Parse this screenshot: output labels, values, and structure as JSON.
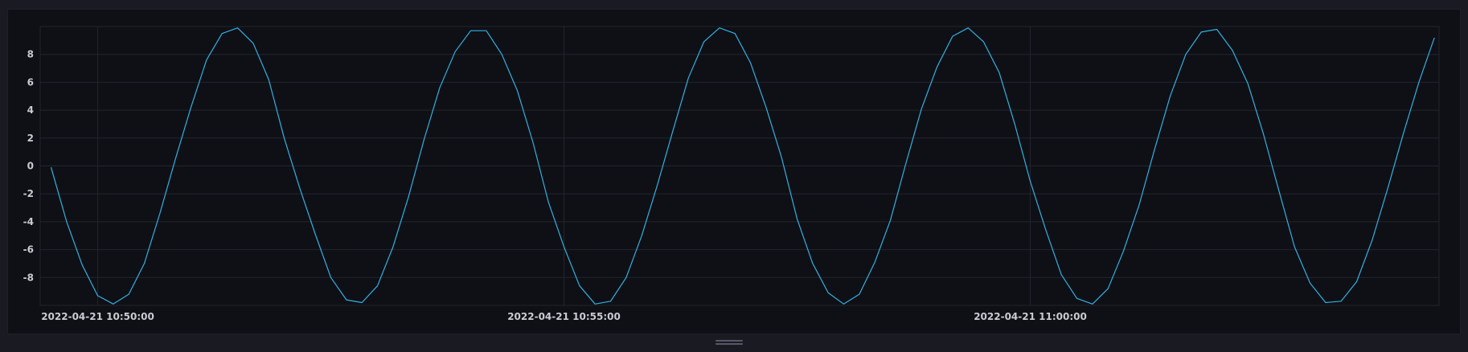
{
  "chart_data": {
    "type": "line",
    "title": "",
    "xlabel": "",
    "ylabel": "",
    "ylim": [
      -10,
      10
    ],
    "y_ticks": [
      8,
      6,
      4,
      2,
      0,
      -2,
      -4,
      -6,
      -8
    ],
    "x_ticks": [
      {
        "t": 0,
        "label": "2022-04-21 10:50:00"
      },
      {
        "t": 300,
        "label": "2022-04-21 10:55:00"
      },
      {
        "t": 600,
        "label": "2022-04-21 11:00:00"
      }
    ],
    "x_range": [
      -37,
      863
    ],
    "grid": true,
    "line_color": "#31b0e6",
    "series": [
      {
        "x": [
          -30,
          -20,
          -10,
          0,
          10,
          20,
          30,
          40,
          50,
          60,
          70,
          80,
          90,
          100,
          110,
          120,
          130,
          140,
          150,
          160,
          170,
          180,
          190,
          200,
          210,
          220,
          230,
          240,
          250,
          260,
          270,
          280,
          290,
          300,
          310,
          320,
          330,
          340,
          350,
          360,
          370,
          380,
          390,
          400,
          410,
          420,
          430,
          440,
          450,
          460,
          470,
          480,
          490,
          500,
          510,
          520,
          530,
          540,
          550,
          560,
          570,
          580,
          590,
          600,
          610,
          620,
          630,
          640,
          650,
          660,
          670,
          680,
          690,
          700,
          710,
          720,
          730,
          740,
          750,
          760,
          770,
          780,
          790,
          800,
          810,
          820,
          830,
          840,
          850,
          860
        ],
        "values": [
          -0.1,
          -4.0,
          -7.1,
          -9.3,
          -9.9,
          -9.2,
          -7.0,
          -3.4,
          0.5,
          4.2,
          7.6,
          9.5,
          9.9,
          8.8,
          6.2,
          2.0,
          -1.6,
          -4.9,
          -8.0,
          -9.6,
          -9.8,
          -8.6,
          -5.8,
          -2.2,
          1.9,
          5.6,
          8.2,
          9.7,
          9.7,
          8.0,
          5.4,
          1.7,
          -2.6,
          -5.8,
          -8.6,
          -9.9,
          -9.7,
          -8.0,
          -5.0,
          -1.4,
          2.5,
          6.3,
          8.9,
          9.9,
          9.5,
          7.4,
          4.2,
          0.6,
          -3.8,
          -7.0,
          -9.1,
          -9.9,
          -9.2,
          -6.9,
          -3.9,
          0.2,
          4.1,
          7.1,
          9.3,
          9.9,
          8.9,
          6.7,
          3.0,
          -1.1,
          -4.6,
          -7.8,
          -9.5,
          -9.9,
          -8.8,
          -6.1,
          -2.8,
          1.2,
          5.0,
          8.0,
          9.6,
          9.8,
          8.3,
          5.9,
          2.3,
          -1.8,
          -5.8,
          -8.4,
          -9.8,
          -9.7,
          -8.3,
          -5.3,
          -1.6,
          2.3,
          6.0,
          9.2
        ]
      }
    ]
  }
}
